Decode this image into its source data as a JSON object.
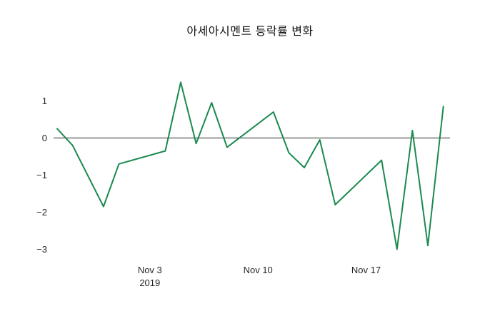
{
  "title": "아세아시멘트 등락률 변화",
  "chart_data": {
    "type": "line",
    "title": "아세아시멘트 등락률 변화",
    "line_color": "#1a8a4f",
    "zero_line_value": 0,
    "zero_line_color": "#2a2a2a",
    "grid": false,
    "legend": false,
    "x_unit": "days (0 = first plotted date, ticks at labeled dates)",
    "x_days": [
      0,
      1,
      3,
      4,
      7,
      8,
      9,
      10,
      11,
      14,
      15,
      16,
      17,
      18,
      21,
      22,
      23,
      24,
      25
    ],
    "values": [
      0.25,
      -0.2,
      -1.85,
      -0.7,
      -0.35,
      1.5,
      -0.15,
      0.95,
      -0.25,
      0.7,
      -0.4,
      -0.8,
      -0.05,
      -1.8,
      -0.6,
      -3.0,
      0.2,
      -2.9,
      0.85
    ],
    "x_ticks": [
      {
        "day": 6,
        "label": "Nov 3",
        "sublabel": "2019"
      },
      {
        "day": 13,
        "label": "Nov 10"
      },
      {
        "day": 20,
        "label": "Nov 17"
      }
    ],
    "y_ticks": [
      {
        "value": 1,
        "label": "1"
      },
      {
        "value": 0,
        "label": "0"
      },
      {
        "value": -1,
        "label": "−1"
      },
      {
        "value": -2,
        "label": "−2"
      },
      {
        "value": -3,
        "label": "−3"
      }
    ],
    "xlim": [
      0,
      25.2
    ],
    "ylim": [
      -3.3,
      1.7
    ]
  }
}
